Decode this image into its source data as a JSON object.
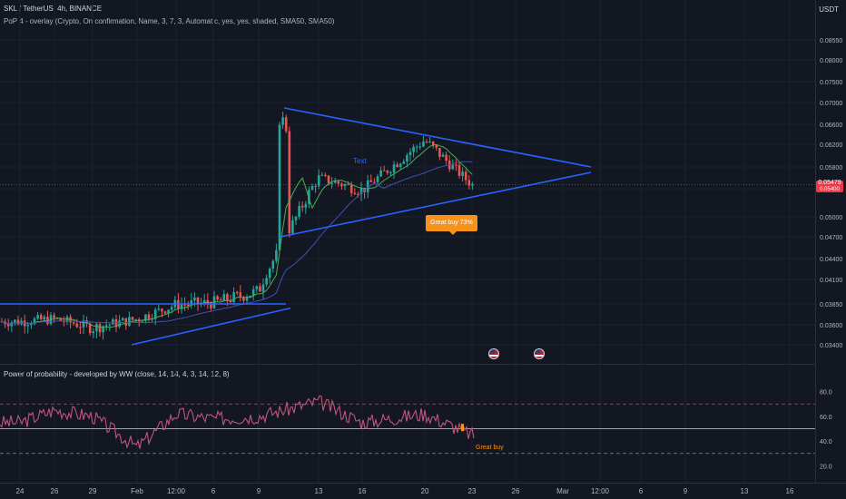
{
  "legend": {
    "title": "SKL / TetherUS, 4h, BINANCE",
    "overlay": "PoP 4 - overlay (Crypto, On confirmation, Name, 3, 7, 3, Automatic, yes, yes, shaded, SMA50, SMA50)",
    "oscillator": "Power of probability - developed by WW (close, 14, 14, 4, 3, 14, 12, 8)"
  },
  "currency": "USDT",
  "last_price": {
    "value": "0.05479",
    "sub": "0.05400"
  },
  "annotations": {
    "text_note": "Text",
    "signal": "Great buy  73%",
    "osc_signal": "Great buy"
  },
  "colors": {
    "up": "#26a69a",
    "down": "#ef5350",
    "trendline": "#2962ff",
    "sma_fast": "#4caf50",
    "sma_slow": "#3f51b5",
    "signal": "#f7931a",
    "background": "#131722"
  },
  "icons": [
    "us-flag-icon",
    "us-flag-icon"
  ],
  "chart_data": [
    {
      "type": "line",
      "title": "SKL / TetherUS, 4h, BINANCE",
      "y_ticks": [
        "0.08550",
        "0.08000",
        "0.07500",
        "0.07000",
        "0.06600",
        "0.06200",
        "0.05800",
        "0.05400",
        "0.05000",
        "0.04700",
        "0.04400",
        "0.04100",
        "0.03850",
        "0.03600",
        "0.03400"
      ],
      "x_ticks": [
        "24",
        "26",
        "29",
        "Feb",
        "12:00",
        "6",
        "9",
        "13",
        "16",
        "20",
        "23",
        "26",
        "Mar",
        "12:00",
        "6",
        "9",
        "13",
        "16"
      ],
      "series": [
        {
          "x": [
            "24",
            "26",
            "29",
            "Feb",
            "12:00",
            "6",
            "9",
            "13",
            "16",
            "20",
            "23"
          ],
          "values": [
            0.0364,
            0.0367,
            0.0357,
            0.0367,
            0.0384,
            0.0386,
            0.0398,
            0.056,
            0.0538,
            0.0628,
            0.0547
          ]
        }
      ],
      "last_value": 0.05479,
      "trendlines": [
        {
          "from": [
            "24",
            0.0385
          ],
          "to": [
            "9",
            0.0385
          ]
        },
        {
          "from": [
            "29",
            0.034
          ],
          "to": [
            "9",
            0.038
          ]
        },
        {
          "from": [
            "9",
            0.069
          ],
          "to": [
            "26",
            0.058
          ]
        },
        {
          "from": [
            "9",
            0.047
          ],
          "to": [
            "26",
            0.057
          ]
        }
      ]
    },
    {
      "type": "line",
      "title": "Power of probability - developed by WW (close, 14, 14, 4, 3, 14, 12, 8)",
      "y_ticks": [
        "80.0",
        "60.0",
        "40.0",
        "20.0"
      ],
      "ylim": [
        10,
        90
      ],
      "levels": [
        70,
        50,
        30
      ],
      "x": [
        "24",
        "26",
        "29",
        "Feb",
        "12:00",
        "6",
        "9",
        "13",
        "16",
        "20",
        "23"
      ],
      "values": [
        55,
        65,
        60,
        35,
        62,
        58,
        60,
        72,
        55,
        62,
        45
      ]
    }
  ]
}
